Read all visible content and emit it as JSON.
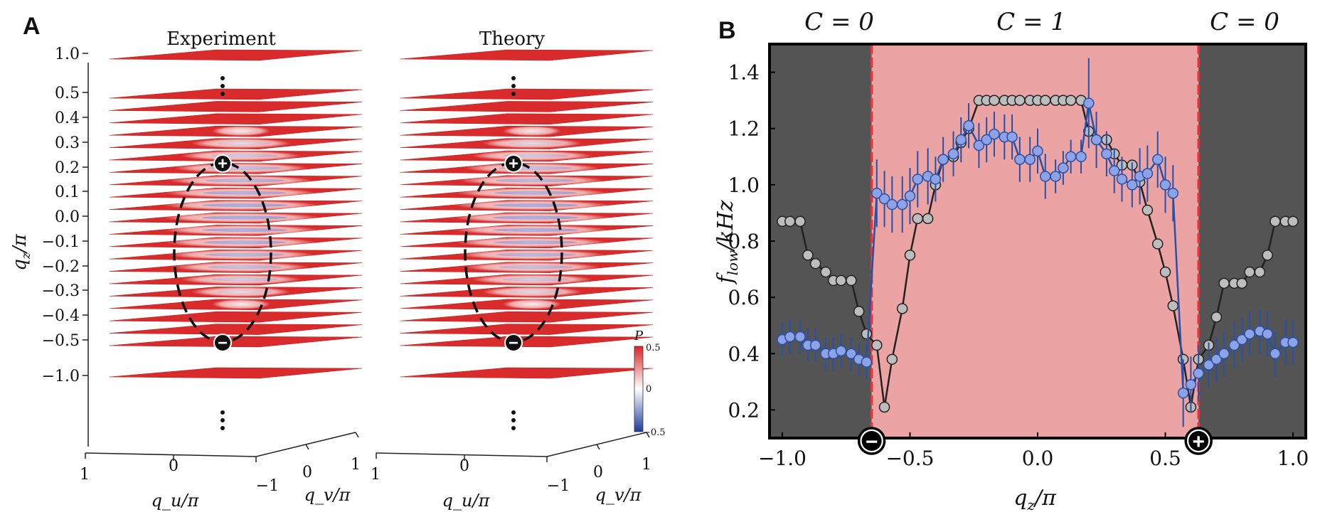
{
  "panel_a": {
    "letter": "A",
    "titles": [
      "Experiment",
      "Theory"
    ],
    "z_ticks": [
      "1.0",
      "0.5",
      "0.4",
      "0.3",
      "0.2",
      "0.1",
      "0.0",
      "−0.1",
      "−0.2",
      "−0.3",
      "−0.4",
      "−0.5",
      "−1.0"
    ],
    "z_label": "q_z/π",
    "u_ticks": [
      "1",
      "0",
      "−1"
    ],
    "v_ticks": [
      "0",
      "1"
    ],
    "v_neg_tick": "−1",
    "u_label": "q_u/π",
    "v_label": "q_v/π",
    "colorbar": {
      "title": "P",
      "max_label": "0.5",
      "mid_label": "0",
      "min_label": "−0.5",
      "colors": [
        "#d62728",
        "#ffffff",
        "#1f3c9a"
      ]
    },
    "plane_color": "#d92b2b",
    "markers": [
      "+",
      "−"
    ]
  },
  "panel_b": {
    "letter": "B",
    "regions": [
      "C = 0",
      "C = 1",
      "C = 0"
    ],
    "region_colors": {
      "trivial": "#545454",
      "topological": "#eba3a3",
      "boundary": "#e8333b"
    },
    "markers": [
      "−",
      "+"
    ],
    "xlabel": "q_z/π",
    "ylabel": "f_low/kHz",
    "xticks": [
      "−1.0",
      "−0.5",
      "0.0",
      "0.5",
      "1.0"
    ],
    "yticks": [
      "0.2",
      "0.4",
      "0.6",
      "0.8",
      "1.0",
      "1.2",
      "1.4"
    ]
  },
  "chart_data": [
    {
      "type": "line",
      "title": "",
      "xlabel": "q_z/π",
      "ylabel": "f_low/kHz",
      "xlim": [
        -1.05,
        1.05
      ],
      "ylim": [
        0.1,
        1.5
      ],
      "grid": false,
      "boundaries": [
        -0.65,
        0.63
      ],
      "series": [
        {
          "color": "#222222",
          "marker_fill": "#bdbdbd",
          "x": [
            -1.0,
            -0.97,
            -0.93,
            -0.9,
            -0.87,
            -0.83,
            -0.8,
            -0.77,
            -0.73,
            -0.7,
            -0.67,
            -0.63,
            -0.6,
            -0.57,
            -0.53,
            -0.5,
            -0.47,
            -0.43,
            -0.4,
            -0.37,
            -0.33,
            -0.3,
            -0.27,
            -0.23,
            -0.2,
            -0.17,
            -0.13,
            -0.1,
            -0.07,
            -0.03,
            0.0,
            0.03,
            0.07,
            0.1,
            0.13,
            0.17,
            0.2,
            0.23,
            0.27,
            0.3,
            0.33,
            0.37,
            0.4,
            0.43,
            0.47,
            0.5,
            0.53,
            0.57,
            0.6,
            0.63,
            0.67,
            0.7,
            0.73,
            0.77,
            0.8,
            0.83,
            0.87,
            0.9,
            0.93,
            0.97,
            1.0
          ],
          "y": [
            0.87,
            0.87,
            0.87,
            0.75,
            0.72,
            0.69,
            0.66,
            0.66,
            0.66,
            0.55,
            0.47,
            0.43,
            0.21,
            0.38,
            0.56,
            0.75,
            0.88,
            0.88,
            1.0,
            1.09,
            1.1,
            1.15,
            1.2,
            1.3,
            1.3,
            1.3,
            1.3,
            1.3,
            1.3,
            1.3,
            1.3,
            1.3,
            1.3,
            1.3,
            1.3,
            1.3,
            1.19,
            1.16,
            1.16,
            1.11,
            1.07,
            1.07,
            1.01,
            0.91,
            0.79,
            0.69,
            0.57,
            0.38,
            0.21,
            0.38,
            0.43,
            0.53,
            0.65,
            0.65,
            0.65,
            0.69,
            0.69,
            0.75,
            0.87,
            0.87,
            0.87
          ]
        },
        {
          "color": "#2750a8",
          "marker_fill": "#8ea3e6",
          "x": [
            -1.0,
            -0.97,
            -0.93,
            -0.9,
            -0.87,
            -0.83,
            -0.8,
            -0.77,
            -0.73,
            -0.7,
            -0.67,
            -0.63,
            -0.6,
            -0.57,
            -0.53,
            -0.5,
            -0.47,
            -0.43,
            -0.4,
            -0.37,
            -0.33,
            -0.3,
            -0.27,
            -0.23,
            -0.2,
            -0.17,
            -0.13,
            -0.1,
            -0.07,
            -0.03,
            0.0,
            0.03,
            0.07,
            0.1,
            0.13,
            0.17,
            0.2,
            0.23,
            0.27,
            0.3,
            0.33,
            0.37,
            0.4,
            0.43,
            0.47,
            0.5,
            0.53,
            0.57,
            0.6,
            0.63,
            0.67,
            0.7,
            0.73,
            0.77,
            0.8,
            0.83,
            0.87,
            0.9,
            0.93,
            0.97,
            1.0
          ],
          "y": [
            0.45,
            0.46,
            0.46,
            0.43,
            0.43,
            0.4,
            0.4,
            0.41,
            0.4,
            0.38,
            0.37,
            0.97,
            0.95,
            0.93,
            0.93,
            0.96,
            1.02,
            1.03,
            1.02,
            1.09,
            1.11,
            1.16,
            1.21,
            1.14,
            1.16,
            1.18,
            1.17,
            1.17,
            1.09,
            1.09,
            1.12,
            1.03,
            1.03,
            1.06,
            1.1,
            1.1,
            1.29,
            1.16,
            1.11,
            1.05,
            1.02,
            1.0,
            1.03,
            1.04,
            1.09,
            1.0,
            0.97,
            0.26,
            0.29,
            0.33,
            0.36,
            0.38,
            0.4,
            0.43,
            0.45,
            0.47,
            0.48,
            0.47,
            0.4,
            0.44,
            0.44
          ],
          "err": [
            0.06,
            0.06,
            0.06,
            0.06,
            0.06,
            0.06,
            0.06,
            0.06,
            0.06,
            0.06,
            0.06,
            0.12,
            0.1,
            0.1,
            0.1,
            0.1,
            0.1,
            0.1,
            0.08,
            0.08,
            0.08,
            0.08,
            0.08,
            0.08,
            0.08,
            0.08,
            0.08,
            0.08,
            0.08,
            0.08,
            0.08,
            0.08,
            0.06,
            0.06,
            0.06,
            0.06,
            0.16,
            0.1,
            0.08,
            0.08,
            0.08,
            0.08,
            0.1,
            0.1,
            0.1,
            0.1,
            0.1,
            0.12,
            0.1,
            0.1,
            0.08,
            0.08,
            0.08,
            0.08,
            0.08,
            0.08,
            0.08,
            0.08,
            0.08,
            0.08,
            0.08
          ]
        }
      ]
    }
  ]
}
